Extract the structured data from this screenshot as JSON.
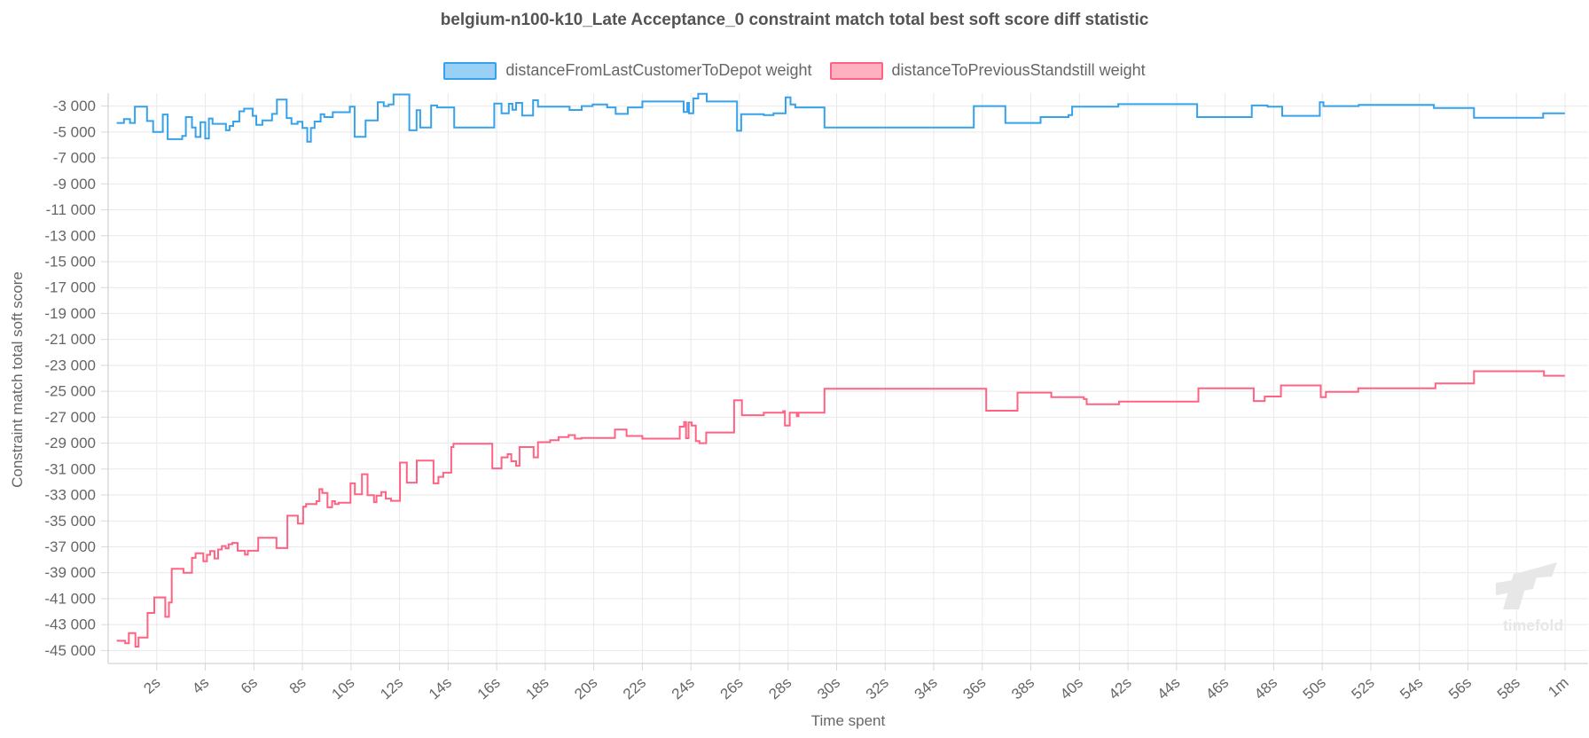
{
  "chart_data": {
    "type": "line",
    "stepped": true,
    "title": "belgium-n100-k10_Late Acceptance_0 constraint match total best soft score diff statistic",
    "xlabel": "Time spent",
    "ylabel": "Constraint match total soft score",
    "xlim": [
      0,
      60.95
    ],
    "ylim": [
      -46000,
      -2000
    ],
    "grid": true,
    "legend_position": "top",
    "x_ticks": [
      {
        "t": 2,
        "label": "2s"
      },
      {
        "t": 4,
        "label": "4s"
      },
      {
        "t": 6,
        "label": "6s"
      },
      {
        "t": 8,
        "label": "8s"
      },
      {
        "t": 10,
        "label": "10s"
      },
      {
        "t": 12,
        "label": "12s"
      },
      {
        "t": 14,
        "label": "14s"
      },
      {
        "t": 16,
        "label": "16s"
      },
      {
        "t": 18,
        "label": "18s"
      },
      {
        "t": 20,
        "label": "20s"
      },
      {
        "t": 22,
        "label": "22s"
      },
      {
        "t": 24,
        "label": "24s"
      },
      {
        "t": 26,
        "label": "26s"
      },
      {
        "t": 28,
        "label": "28s"
      },
      {
        "t": 30,
        "label": "30s"
      },
      {
        "t": 32,
        "label": "32s"
      },
      {
        "t": 34,
        "label": "34s"
      },
      {
        "t": 36,
        "label": "36s"
      },
      {
        "t": 38,
        "label": "38s"
      },
      {
        "t": 40,
        "label": "40s"
      },
      {
        "t": 42,
        "label": "42s"
      },
      {
        "t": 44,
        "label": "44s"
      },
      {
        "t": 46,
        "label": "46s"
      },
      {
        "t": 48,
        "label": "48s"
      },
      {
        "t": 50,
        "label": "50s"
      },
      {
        "t": 52,
        "label": "52s"
      },
      {
        "t": 54,
        "label": "54s"
      },
      {
        "t": 56,
        "label": "56s"
      },
      {
        "t": 58,
        "label": "58s"
      },
      {
        "t": 60,
        "label": "1m"
      }
    ],
    "y_ticks": [
      {
        "v": -3000,
        "label": "-3 000"
      },
      {
        "v": -5000,
        "label": "-5 000"
      },
      {
        "v": -7000,
        "label": "-7 000"
      },
      {
        "v": -9000,
        "label": "-9 000"
      },
      {
        "v": -11000,
        "label": "-11 000"
      },
      {
        "v": -13000,
        "label": "-13 000"
      },
      {
        "v": -15000,
        "label": "-15 000"
      },
      {
        "v": -17000,
        "label": "-17 000"
      },
      {
        "v": -19000,
        "label": "-19 000"
      },
      {
        "v": -21000,
        "label": "-21 000"
      },
      {
        "v": -23000,
        "label": "-23 000"
      },
      {
        "v": -25000,
        "label": "-25 000"
      },
      {
        "v": -27000,
        "label": "-27 000"
      },
      {
        "v": -29000,
        "label": "-29 000"
      },
      {
        "v": -31000,
        "label": "-31 000"
      },
      {
        "v": -33000,
        "label": "-33 000"
      },
      {
        "v": -35000,
        "label": "-35 000"
      },
      {
        "v": -37000,
        "label": "-37 000"
      },
      {
        "v": -39000,
        "label": "-39 000"
      },
      {
        "v": -41000,
        "label": "-41 000"
      },
      {
        "v": -43000,
        "label": "-43 000"
      },
      {
        "v": -45000,
        "label": "-45 000"
      }
    ],
    "series": [
      {
        "name": "distanceFromLastCustomerToDepot weight",
        "color": "#36a2eb",
        "fill": "#9ad0f5",
        "points": [
          [
            0.35,
            -4300
          ],
          [
            0.65,
            -4000
          ],
          [
            0.9,
            -4300
          ],
          [
            1.1,
            -3050
          ],
          [
            1.6,
            -4150
          ],
          [
            1.85,
            -5000
          ],
          [
            2.25,
            -3650
          ],
          [
            2.45,
            -5550
          ],
          [
            3.05,
            -5300
          ],
          [
            3.2,
            -3850
          ],
          [
            3.45,
            -4650
          ],
          [
            3.6,
            -5380
          ],
          [
            3.8,
            -4240
          ],
          [
            4.0,
            -5500
          ],
          [
            4.15,
            -3960
          ],
          [
            4.3,
            -4370
          ],
          [
            4.85,
            -4870
          ],
          [
            5.0,
            -4530
          ],
          [
            5.15,
            -4190
          ],
          [
            5.4,
            -3400
          ],
          [
            5.6,
            -3200
          ],
          [
            5.95,
            -3750
          ],
          [
            6.1,
            -4440
          ],
          [
            6.35,
            -4100
          ],
          [
            6.75,
            -3600
          ],
          [
            6.95,
            -2500
          ],
          [
            7.35,
            -3920
          ],
          [
            7.55,
            -4370
          ],
          [
            7.8,
            -4200
          ],
          [
            8.0,
            -4690
          ],
          [
            8.2,
            -5740
          ],
          [
            8.35,
            -4690
          ],
          [
            8.5,
            -4190
          ],
          [
            8.75,
            -3630
          ],
          [
            8.9,
            -3850
          ],
          [
            9.25,
            -3470
          ],
          [
            9.95,
            -3050
          ],
          [
            10.15,
            -5370
          ],
          [
            10.6,
            -4100
          ],
          [
            11.1,
            -2700
          ],
          [
            11.35,
            -3000
          ],
          [
            11.55,
            -2870
          ],
          [
            11.75,
            -2100
          ],
          [
            12.4,
            -4870
          ],
          [
            12.7,
            -3320
          ],
          [
            12.85,
            -4650
          ],
          [
            13.3,
            -2950
          ],
          [
            13.55,
            -3100
          ],
          [
            14.25,
            -4650
          ],
          [
            15.9,
            -2800
          ],
          [
            16.2,
            -3550
          ],
          [
            16.5,
            -2820
          ],
          [
            16.65,
            -3280
          ],
          [
            16.8,
            -2750
          ],
          [
            17.05,
            -3730
          ],
          [
            17.5,
            -2550
          ],
          [
            17.7,
            -3050
          ],
          [
            19.0,
            -3300
          ],
          [
            19.5,
            -3000
          ],
          [
            19.95,
            -2870
          ],
          [
            20.55,
            -3100
          ],
          [
            20.9,
            -3600
          ],
          [
            21.4,
            -3100
          ],
          [
            22.0,
            -2640
          ],
          [
            23.7,
            -3460
          ],
          [
            23.85,
            -2750
          ],
          [
            23.92,
            -3550
          ],
          [
            24.1,
            -2410
          ],
          [
            24.3,
            -2050
          ],
          [
            24.65,
            -2640
          ],
          [
            25.9,
            -4900
          ],
          [
            26.07,
            -3620
          ],
          [
            27.0,
            -3690
          ],
          [
            27.4,
            -3550
          ],
          [
            27.9,
            -2320
          ],
          [
            28.1,
            -2870
          ],
          [
            28.3,
            -3100
          ],
          [
            29.5,
            -4650
          ],
          [
            35.65,
            -3000
          ],
          [
            36.95,
            -4300
          ],
          [
            38.4,
            -3850
          ],
          [
            39.55,
            -3690
          ],
          [
            39.7,
            -3050
          ],
          [
            41.6,
            -2850
          ],
          [
            44.85,
            -3850
          ],
          [
            47.1,
            -2950
          ],
          [
            47.75,
            -3050
          ],
          [
            48.35,
            -3750
          ],
          [
            49.9,
            -2700
          ],
          [
            50.05,
            -3000
          ],
          [
            51.5,
            -2900
          ],
          [
            54.6,
            -3150
          ],
          [
            56.25,
            -3900
          ],
          [
            59.1,
            -3550
          ]
        ]
      },
      {
        "name": "distanceToPreviousStandstill weight",
        "color": "#ff6384",
        "fill": "#ffb1c1",
        "points": [
          [
            0.35,
            -44250
          ],
          [
            0.7,
            -44450
          ],
          [
            0.85,
            -43650
          ],
          [
            1.12,
            -44700
          ],
          [
            1.25,
            -44000
          ],
          [
            1.62,
            -42100
          ],
          [
            1.9,
            -40900
          ],
          [
            2.35,
            -42400
          ],
          [
            2.5,
            -41300
          ],
          [
            2.62,
            -38700
          ],
          [
            3.1,
            -39000
          ],
          [
            3.45,
            -37850
          ],
          [
            3.6,
            -37500
          ],
          [
            3.92,
            -38120
          ],
          [
            4.07,
            -37620
          ],
          [
            4.2,
            -37330
          ],
          [
            4.38,
            -37900
          ],
          [
            4.53,
            -37210
          ],
          [
            4.68,
            -36940
          ],
          [
            4.84,
            -37120
          ],
          [
            4.96,
            -36800
          ],
          [
            5.11,
            -36700
          ],
          [
            5.33,
            -37300
          ],
          [
            5.63,
            -37600
          ],
          [
            5.75,
            -37300
          ],
          [
            6.18,
            -36300
          ],
          [
            6.93,
            -37100
          ],
          [
            7.38,
            -34600
          ],
          [
            7.81,
            -35200
          ],
          [
            8.03,
            -33900
          ],
          [
            8.15,
            -33700
          ],
          [
            8.58,
            -33480
          ],
          [
            8.7,
            -32550
          ],
          [
            8.82,
            -32850
          ],
          [
            9.03,
            -33950
          ],
          [
            9.22,
            -33480
          ],
          [
            9.34,
            -33700
          ],
          [
            9.49,
            -33600
          ],
          [
            9.98,
            -32100
          ],
          [
            10.16,
            -32950
          ],
          [
            10.45,
            -31400
          ],
          [
            10.68,
            -33020
          ],
          [
            10.95,
            -33550
          ],
          [
            11.05,
            -33050
          ],
          [
            11.25,
            -32780
          ],
          [
            11.43,
            -33280
          ],
          [
            11.65,
            -33450
          ],
          [
            12.02,
            -30500
          ],
          [
            12.3,
            -32050
          ],
          [
            12.71,
            -30350
          ],
          [
            13.4,
            -32100
          ],
          [
            13.6,
            -31600
          ],
          [
            13.8,
            -31280
          ],
          [
            14.13,
            -29300
          ],
          [
            14.22,
            -29050
          ],
          [
            15.82,
            -30950
          ],
          [
            16.2,
            -30100
          ],
          [
            16.45,
            -29850
          ],
          [
            16.6,
            -30400
          ],
          [
            16.8,
            -30750
          ],
          [
            16.94,
            -29300
          ],
          [
            17.52,
            -30100
          ],
          [
            17.7,
            -28930
          ],
          [
            18.2,
            -28770
          ],
          [
            18.55,
            -28540
          ],
          [
            18.96,
            -28380
          ],
          [
            19.22,
            -28650
          ],
          [
            19.49,
            -28600
          ],
          [
            20.87,
            -27950
          ],
          [
            21.35,
            -28450
          ],
          [
            22.0,
            -28650
          ],
          [
            23.54,
            -27730
          ],
          [
            23.72,
            -27380
          ],
          [
            23.8,
            -28620
          ],
          [
            23.9,
            -27400
          ],
          [
            24.03,
            -27650
          ],
          [
            24.2,
            -28840
          ],
          [
            24.35,
            -29000
          ],
          [
            24.63,
            -28180
          ],
          [
            25.78,
            -25700
          ],
          [
            26.1,
            -26850
          ],
          [
            27.0,
            -26650
          ],
          [
            27.8,
            -26530
          ],
          [
            27.87,
            -27650
          ],
          [
            28.07,
            -26650
          ],
          [
            28.36,
            -26930
          ],
          [
            28.43,
            -26650
          ],
          [
            29.5,
            -24800
          ],
          [
            36.16,
            -26500
          ],
          [
            37.45,
            -25100
          ],
          [
            38.84,
            -25450
          ],
          [
            40.18,
            -25600
          ],
          [
            40.3,
            -26000
          ],
          [
            41.63,
            -25800
          ],
          [
            44.9,
            -24770
          ],
          [
            47.18,
            -25750
          ],
          [
            47.63,
            -25400
          ],
          [
            48.3,
            -24550
          ],
          [
            49.94,
            -25450
          ],
          [
            50.15,
            -25050
          ],
          [
            51.48,
            -24770
          ],
          [
            54.66,
            -24400
          ],
          [
            56.25,
            -23450
          ],
          [
            59.13,
            -23800
          ]
        ]
      }
    ],
    "watermark": "timefold"
  }
}
